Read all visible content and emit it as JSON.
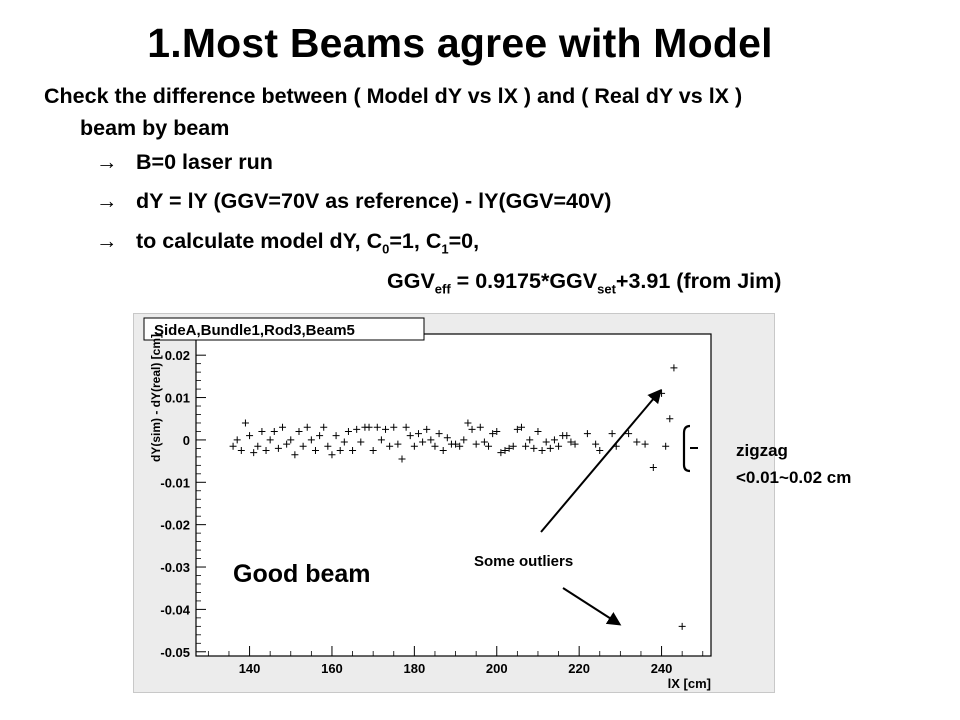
{
  "slide": {
    "title": "1.Most Beams agree with Model",
    "intro_line1": "Check the difference between ( Model dY vs lX ) and ( Real dY vs lX )",
    "intro_line2": "beam by beam",
    "bullets": [
      "B=0 laser run",
      "dY = lY (GGV=70V as reference)  -  lY(GGV=40V)"
    ],
    "bullet3_text": "to calculate model dY,  C",
    "bullet3_sub0": "0",
    "bullet3_mid": "=1, C",
    "bullet3_sub1": "1",
    "bullet3_end": "=0,",
    "formula_a": "GGV",
    "formula_sub_eff": "eff",
    "formula_b": " = 0.9175*GGV",
    "formula_sub_set": "set",
    "formula_c": "+3.91 (from Jim)",
    "arrow_glyph": "→"
  },
  "annotations": {
    "good_beam": "Good beam",
    "outliers": "Some outliers",
    "zigzag_1": "zigzag",
    "zigzag_2": "<0.01~0.02  cm"
  },
  "chart_data": {
    "type": "scatter",
    "title": "SideA,Bundle1,Rod3,Beam5",
    "xlabel": "lX [cm]",
    "ylabel": "dY(sim) - dY(real) [cm]",
    "xlim": [
      127,
      252
    ],
    "ylim": [
      -0.051,
      0.025
    ],
    "xticks": [
      140,
      160,
      180,
      200,
      220,
      240
    ],
    "yticks": [
      0.02,
      0.01,
      0,
      -0.01,
      -0.02,
      -0.03,
      -0.04,
      -0.05
    ],
    "ytick_labels": [
      "0.02",
      "0.01",
      "0",
      "-0.01",
      "-0.02",
      "-0.03",
      "-0.04",
      "-0.05"
    ],
    "marker": "+",
    "marker_color": "#000000",
    "points": [
      [
        136,
        -0.0015
      ],
      [
        137,
        0.0
      ],
      [
        138,
        -0.0025
      ],
      [
        139,
        0.004
      ],
      [
        140,
        0.001
      ],
      [
        141,
        -0.003
      ],
      [
        142,
        -0.0015
      ],
      [
        143,
        0.002
      ],
      [
        144,
        -0.0025
      ],
      [
        145,
        0.0
      ],
      [
        146,
        0.002
      ],
      [
        147,
        -0.002
      ],
      [
        148,
        0.003
      ],
      [
        149,
        -0.001
      ],
      [
        150,
        0.0
      ],
      [
        151,
        -0.0035
      ],
      [
        152,
        0.002
      ],
      [
        153,
        -0.0015
      ],
      [
        154,
        0.003
      ],
      [
        155,
        0.0
      ],
      [
        156,
        -0.0025
      ],
      [
        157,
        0.001
      ],
      [
        158,
        0.003
      ],
      [
        159,
        -0.0015
      ],
      [
        160,
        -0.0035
      ],
      [
        161,
        0.001
      ],
      [
        162,
        -0.0025
      ],
      [
        163,
        -0.0005
      ],
      [
        164,
        0.002
      ],
      [
        165,
        -0.0025
      ],
      [
        166,
        0.0025
      ],
      [
        167,
        -0.0005
      ],
      [
        168,
        0.003
      ],
      [
        169,
        0.003
      ],
      [
        170,
        -0.0025
      ],
      [
        171,
        0.003
      ],
      [
        172,
        0.0
      ],
      [
        173,
        0.0025
      ],
      [
        174,
        -0.0015
      ],
      [
        175,
        0.003
      ],
      [
        176,
        -0.001
      ],
      [
        177,
        -0.0045
      ],
      [
        178,
        0.003
      ],
      [
        179,
        0.001
      ],
      [
        180,
        -0.0015
      ],
      [
        181,
        0.0015
      ],
      [
        182,
        -0.0005
      ],
      [
        183,
        0.0025
      ],
      [
        184,
        0.0
      ],
      [
        185,
        -0.0015
      ],
      [
        186,
        0.0015
      ],
      [
        187,
        -0.0025
      ],
      [
        188,
        0.0005
      ],
      [
        189,
        -0.001
      ],
      [
        190,
        -0.001
      ],
      [
        191,
        -0.0015
      ],
      [
        192,
        0.0
      ],
      [
        193,
        0.004
      ],
      [
        194,
        0.0025
      ],
      [
        195,
        -0.001
      ],
      [
        196,
        0.003
      ],
      [
        197,
        -0.0005
      ],
      [
        198,
        -0.0015
      ],
      [
        199,
        0.0015
      ],
      [
        200,
        0.002
      ],
      [
        201,
        -0.003
      ],
      [
        202,
        -0.0025
      ],
      [
        203,
        -0.002
      ],
      [
        204,
        -0.0015
      ],
      [
        205,
        0.0025
      ],
      [
        206,
        0.003
      ],
      [
        207,
        -0.0015
      ],
      [
        208,
        0.0
      ],
      [
        209,
        -0.002
      ],
      [
        210,
        0.002
      ],
      [
        211,
        -0.0025
      ],
      [
        212,
        -0.0005
      ],
      [
        213,
        -0.002
      ],
      [
        214,
        0.0
      ],
      [
        215,
        -0.0015
      ],
      [
        216,
        0.001
      ],
      [
        217,
        0.001
      ],
      [
        218,
        -0.0005
      ],
      [
        219,
        -0.001
      ],
      [
        222,
        0.0015
      ],
      [
        224,
        -0.001
      ],
      [
        225,
        -0.0025
      ],
      [
        228,
        0.0015
      ],
      [
        229,
        -0.0015
      ],
      [
        232,
        0.0015
      ],
      [
        234,
        -0.0005
      ],
      [
        236,
        -0.001
      ],
      [
        238,
        -0.0065
      ],
      [
        240,
        0.011
      ],
      [
        241,
        -0.0015
      ],
      [
        242,
        0.005
      ],
      [
        243,
        0.017
      ],
      [
        245,
        -0.044
      ]
    ],
    "grid": false,
    "legend": "none"
  }
}
